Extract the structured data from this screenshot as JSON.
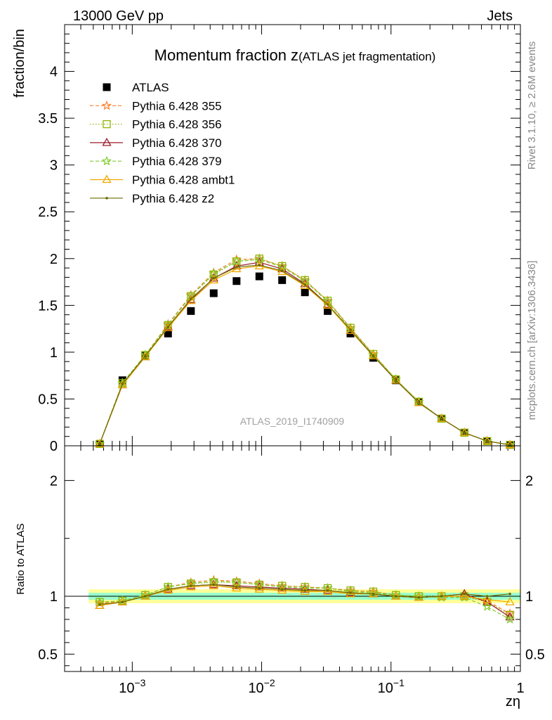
{
  "header": {
    "left": "13000 GeV pp",
    "right": "Jets"
  },
  "side_labels": {
    "rivet": "Rivet 3.1.10, ≥ 2.6M events",
    "mcplots": "mcplots.cern.ch [arXiv:1306.3436]"
  },
  "chart_data": [
    {
      "type": "scatter",
      "panel": "main",
      "title_main": "Momentum fraction z",
      "title_sub": "(ATLAS jet fragmentation)",
      "ylabel": "fraction/bin",
      "watermark": "ATLAS_2019_I1740909",
      "x_scale": "log",
      "xlim": [
        0.0003,
        1.0
      ],
      "ylim": [
        0,
        4.5
      ],
      "yticks": [
        0,
        0.5,
        1,
        1.5,
        2,
        2.5,
        3,
        3.5,
        4
      ],
      "ytick_labels": [
        "0",
        "0.5",
        "1",
        "1.5",
        "2",
        "2.5",
        "3",
        "3.5",
        "4"
      ],
      "x": [
        0.00056,
        0.00084,
        0.00126,
        0.00189,
        0.00284,
        0.00426,
        0.0064,
        0.0096,
        0.0144,
        0.0216,
        0.0324,
        0.0486,
        0.0729,
        0.109,
        0.164,
        0.246,
        0.369,
        0.553,
        0.83
      ],
      "legend_position": "top-left",
      "series": [
        {
          "name": "ATLAS",
          "color": "#000000",
          "marker": "square",
          "line": "none",
          "values": [
            0.02,
            0.7,
            0.96,
            1.2,
            1.44,
            1.63,
            1.76,
            1.81,
            1.77,
            1.64,
            1.44,
            1.2,
            0.94,
            0.7,
            0.47,
            0.29,
            0.14,
            0.05,
            0.01
          ]
        },
        {
          "name": "Pythia 6.428 355",
          "color": "#ff7f2a",
          "marker": "star",
          "line": "dashed",
          "values": [
            0.02,
            0.67,
            0.97,
            1.3,
            1.61,
            1.85,
            1.99,
            2.0,
            1.92,
            1.77,
            1.55,
            1.26,
            0.98,
            0.71,
            0.47,
            0.29,
            0.14,
            0.05,
            0.01
          ]
        },
        {
          "name": "Pythia 6.428 356",
          "color": "#8db600",
          "marker": "open-square",
          "line": "dotted",
          "values": [
            0.02,
            0.67,
            0.97,
            1.29,
            1.6,
            1.83,
            1.97,
            2.0,
            1.92,
            1.77,
            1.55,
            1.26,
            0.98,
            0.71,
            0.47,
            0.29,
            0.14,
            0.05,
            0.01
          ]
        },
        {
          "name": "Pythia 6.428 370",
          "color": "#9b1c2e",
          "marker": "open-triangle",
          "line": "solid",
          "values": [
            0.02,
            0.65,
            0.95,
            1.27,
            1.56,
            1.79,
            1.92,
            1.96,
            1.89,
            1.73,
            1.51,
            1.23,
            0.96,
            0.7,
            0.46,
            0.29,
            0.14,
            0.05,
            0.01
          ]
        },
        {
          "name": "Pythia 6.428 379",
          "color": "#7fcc2a",
          "marker": "star",
          "line": "dashed",
          "values": [
            0.02,
            0.67,
            0.97,
            1.29,
            1.6,
            1.84,
            1.97,
            1.99,
            1.91,
            1.76,
            1.54,
            1.25,
            0.97,
            0.71,
            0.47,
            0.29,
            0.14,
            0.05,
            0.01
          ]
        },
        {
          "name": "Pythia 6.428 ambt1",
          "color": "#f0a800",
          "marker": "open-triangle",
          "line": "solid",
          "values": [
            0.02,
            0.65,
            0.95,
            1.26,
            1.55,
            1.77,
            1.89,
            1.92,
            1.86,
            1.71,
            1.5,
            1.23,
            0.96,
            0.7,
            0.46,
            0.29,
            0.14,
            0.05,
            0.01
          ]
        },
        {
          "name": "Pythia 6.428 z2",
          "color": "#6b6b00",
          "marker": "dot",
          "line": "solid",
          "values": [
            0.02,
            0.66,
            0.96,
            1.27,
            1.57,
            1.79,
            1.91,
            1.93,
            1.87,
            1.72,
            1.51,
            1.24,
            0.96,
            0.7,
            0.46,
            0.29,
            0.14,
            0.05,
            0.01
          ]
        }
      ]
    },
    {
      "type": "line",
      "panel": "ratio",
      "ylabel": "Ratio to ATLAS",
      "xlabel": "zη",
      "x_scale": "log",
      "xlim": [
        0.0003,
        1.0
      ],
      "ylim": [
        0.35,
        2.3
      ],
      "yticks": [
        0.5,
        1,
        2
      ],
      "ytick_labels": [
        "0.5",
        "1",
        "2"
      ],
      "xticks": [
        0.001,
        0.01,
        0.1,
        1
      ],
      "xtick_labels": [
        "10−3",
        "10−2",
        "10−1",
        "1"
      ],
      "band_inner": [
        0.97,
        1.03
      ],
      "band_outer": [
        0.94,
        1.06
      ],
      "x": [
        0.00056,
        0.00084,
        0.00126,
        0.00189,
        0.00284,
        0.00426,
        0.0064,
        0.0096,
        0.0144,
        0.0216,
        0.0324,
        0.0486,
        0.0729,
        0.109,
        0.164,
        0.246,
        0.369,
        0.553,
        0.83
      ],
      "series": [
        {
          "name": "Pythia 6.428 355",
          "values": [
            0.94,
            0.96,
            1.01,
            1.08,
            1.12,
            1.14,
            1.13,
            1.11,
            1.09,
            1.08,
            1.07,
            1.05,
            1.04,
            1.01,
            1.0,
            0.99,
            1.0,
            0.96,
            0.85
          ]
        },
        {
          "name": "Pythia 6.428 356",
          "values": [
            0.95,
            0.96,
            1.01,
            1.08,
            1.11,
            1.12,
            1.12,
            1.1,
            1.09,
            1.08,
            1.07,
            1.05,
            1.04,
            1.01,
            1.0,
            1.0,
            1.0,
            0.95,
            0.84
          ]
        },
        {
          "name": "Pythia 6.428 370",
          "values": [
            0.92,
            0.95,
            1.0,
            1.06,
            1.09,
            1.1,
            1.09,
            1.08,
            1.07,
            1.06,
            1.05,
            1.03,
            1.02,
            1.0,
            0.99,
            1.0,
            1.02,
            0.95,
            0.82
          ]
        },
        {
          "name": "Pythia 6.428 379",
          "values": [
            0.95,
            0.96,
            1.01,
            1.08,
            1.11,
            1.13,
            1.12,
            1.1,
            1.08,
            1.07,
            1.07,
            1.04,
            1.03,
            1.01,
            1.0,
            0.99,
            0.99,
            0.91,
            0.8
          ]
        },
        {
          "name": "Pythia 6.428 ambt1",
          "values": [
            0.92,
            0.95,
            1.0,
            1.05,
            1.08,
            1.09,
            1.07,
            1.06,
            1.05,
            1.04,
            1.04,
            1.02,
            1.02,
            1.0,
            0.99,
            1.0,
            1.0,
            0.97,
            0.95
          ]
        },
        {
          "name": "Pythia 6.428 z2",
          "values": [
            0.93,
            0.95,
            1.0,
            1.06,
            1.09,
            1.1,
            1.08,
            1.07,
            1.06,
            1.05,
            1.05,
            1.03,
            1.02,
            1.0,
            0.99,
            1.0,
            1.02,
            1.0,
            1.02
          ]
        }
      ]
    }
  ]
}
